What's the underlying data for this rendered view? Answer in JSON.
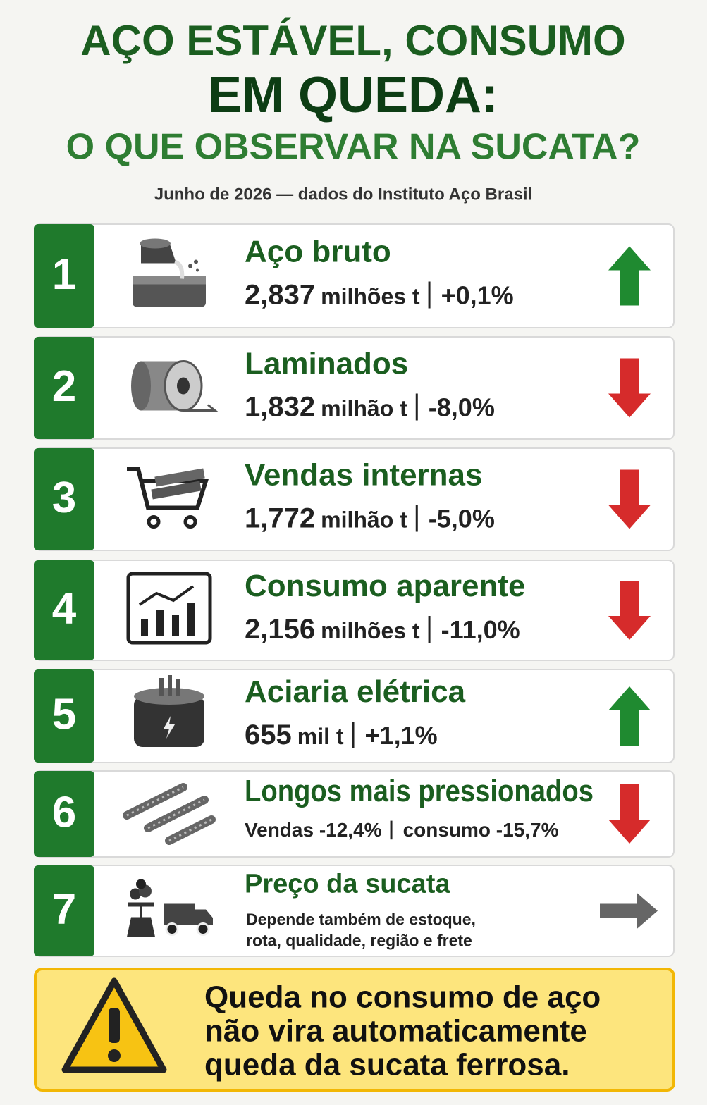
{
  "header": {
    "title_lines": [
      "AÇO ESTÁVEL, CONSUMO",
      "EM QUEDA:",
      "O QUE OBSERVAR NA SUCATA?"
    ],
    "subtitle": "Junho de 2026 — dados do Instituto Aço Brasil"
  },
  "items": [
    {
      "number": "1",
      "title": "Aço bruto",
      "value": "2,837",
      "unit": "milhões t",
      "change": "+0,1%",
      "trend": "up"
    },
    {
      "number": "2",
      "title": "Laminados",
      "value": "1,832",
      "unit": "milhão t",
      "change": "-8,0%",
      "trend": "down"
    },
    {
      "number": "3",
      "title": "Vendas internas",
      "value": "1,772",
      "unit": "milhão t",
      "change": "-5,0%",
      "trend": "down"
    },
    {
      "number": "4",
      "title": "Consumo aparente",
      "value": "2,156",
      "unit": "milhões t",
      "change": "-11,0%",
      "trend": "down"
    },
    {
      "number": "5",
      "title": "Aciaria elétrica",
      "value": "655",
      "unit": "mil t",
      "change": "+1,1%",
      "trend": "up"
    },
    {
      "number": "6",
      "title": "Longos mais pressionados",
      "details": [
        "Vendas -12,4%",
        "consumo -15,7%"
      ],
      "trend": "down"
    },
    {
      "number": "7",
      "title": "Preço da sucata",
      "description": [
        "Depende também de estoque,",
        "rota, qualidade, região e frete"
      ],
      "trend": "flat"
    }
  ],
  "alert": {
    "lines": [
      "Queda no consumo de aço",
      "não vira automaticamente",
      "queda da sucata ferrosa."
    ]
  }
}
